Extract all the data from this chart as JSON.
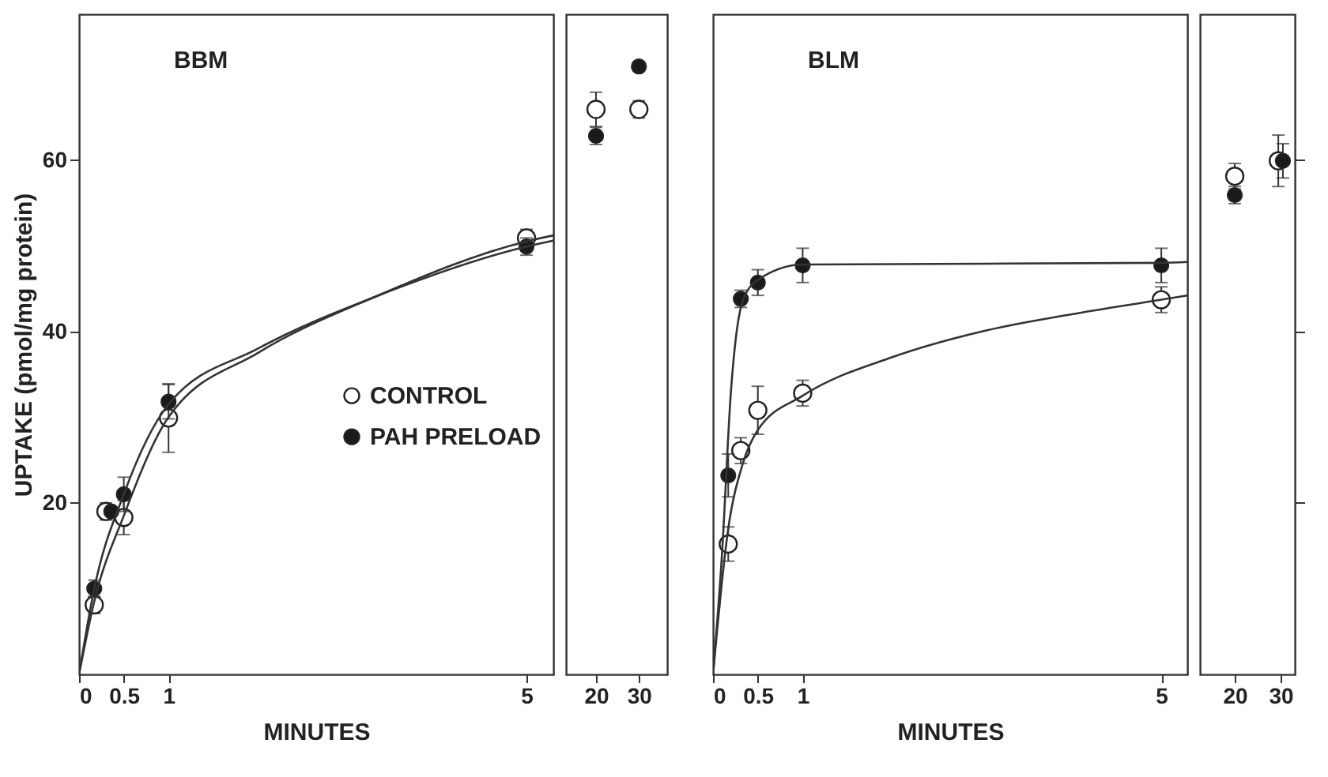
{
  "chart_data": [
    {
      "type": "scatter",
      "title": "BBM",
      "xlabel": "MINUTES",
      "ylabel": "UPTAKE (pmol/mg protein)",
      "xlim": [
        0,
        5.3
      ],
      "xticks": [
        0,
        0.5,
        1,
        5
      ],
      "ylim": [
        0,
        77
      ],
      "yticks": [
        20,
        40,
        60
      ],
      "legend": "center",
      "marker": "circle",
      "grid": false,
      "series": [
        {
          "name": "CONTROL",
          "color": "#ffffff",
          "x": [
            0.17,
            0.3,
            0.5,
            1,
            5
          ],
          "values": [
            8.1,
            19,
            18.3,
            29.9,
            50.9
          ],
          "errors": [
            1,
            1,
            2,
            4,
            1
          ]
        },
        {
          "name": "PAH PRELOAD",
          "color": "#1a1a1a",
          "x": [
            0.17,
            0.36,
            0.5,
            1,
            5
          ],
          "values": [
            10,
            19,
            21,
            31.8,
            49.9
          ],
          "errors": [
            1,
            null,
            2,
            2,
            1
          ]
        },
        {
          "type": "line",
          "marker": "none",
          "color": "#333333",
          "x": [
            0,
            0.17,
            0.5,
            1,
            2,
            3.3,
            5,
            5.3
          ],
          "values": [
            0,
            8.5,
            18.5,
            30,
            37.5,
            44,
            50.5,
            51.2
          ]
        },
        {
          "type": "line",
          "marker": "none",
          "color": "#333333",
          "x": [
            0,
            0.17,
            0.5,
            1,
            2,
            3.3,
            5,
            5.3
          ],
          "values": [
            0,
            10,
            21,
            31.5,
            38,
            44,
            49.9,
            50.6
          ]
        }
      ]
    },
    {
      "type": "scatter",
      "xlim": [
        13,
        36.6
      ],
      "xticks": [
        20,
        30
      ],
      "ylim": [
        0,
        77
      ],
      "tick_labels": "x",
      "marker": "circle",
      "grid": false,
      "series": [
        {
          "color": "#ffffff",
          "x": [
            20,
            30
          ],
          "values": [
            65.9,
            65.9
          ],
          "errors": [
            2,
            1
          ]
        },
        {
          "color": "#1a1a1a",
          "x": [
            20,
            30
          ],
          "values": [
            62.8,
            70.9
          ],
          "errors": [
            1,
            0.5
          ]
        }
      ]
    },
    {
      "type": "scatter",
      "title": "BLM",
      "xlabel": "MINUTES",
      "xlim": [
        0,
        5.29
      ],
      "xticks": [
        0,
        0.5,
        1,
        5
      ],
      "ylim": [
        0,
        77
      ],
      "tick_labels": "x",
      "marker": "circle",
      "grid": false,
      "series": [
        {
          "color": "#ffffff",
          "x": [
            0.17,
            0.31,
            0.5,
            1,
            5
          ],
          "values": [
            15.2,
            26.1,
            30.8,
            32.8,
            43.7
          ],
          "errors": [
            2,
            1.5,
            2.8,
            1.5,
            1.5
          ]
        },
        {
          "color": "#1a1a1a",
          "x": [
            0.17,
            0.31,
            0.5,
            1,
            5
          ],
          "values": [
            23.2,
            43.8,
            45.7,
            47.7,
            47.7
          ],
          "errors": [
            2.5,
            1,
            1.5,
            2,
            2
          ]
        },
        {
          "type": "line",
          "marker": "none",
          "color": "#333333",
          "x": [
            0,
            0.17,
            0.33,
            0.5,
            1,
            2,
            3,
            4,
            5,
            5.29
          ],
          "values": [
            0,
            17,
            24.5,
            28.5,
            32.5,
            37,
            40,
            42,
            43.7,
            44.2
          ]
        },
        {
          "type": "line",
          "marker": "none",
          "color": "#333333",
          "x": [
            0,
            0.1,
            0.2,
            0.33,
            0.5,
            1,
            5,
            5.29
          ],
          "values": [
            0,
            14,
            33,
            43.5,
            46,
            47.8,
            48,
            48.1
          ]
        }
      ]
    },
    {
      "type": "scatter",
      "xlim": [
        12.4,
        33.1
      ],
      "xticks": [
        20,
        30
      ],
      "y2lim": [
        0,
        77
      ],
      "y2ticks": [
        20,
        40,
        60
      ],
      "tick_labels": "x",
      "marker": "circle",
      "grid": false,
      "series": [
        {
          "color": "#ffffff",
          "axis": "y2",
          "x": [
            20,
            29.5
          ],
          "values": [
            58.1,
            59.9
          ],
          "errors": [
            1.5,
            3
          ]
        },
        {
          "color": "#1a1a1a",
          "axis": "y2",
          "x": [
            20,
            30.5
          ],
          "values": [
            55.9,
            59.9
          ],
          "errors": [
            1,
            2
          ]
        }
      ]
    }
  ]
}
